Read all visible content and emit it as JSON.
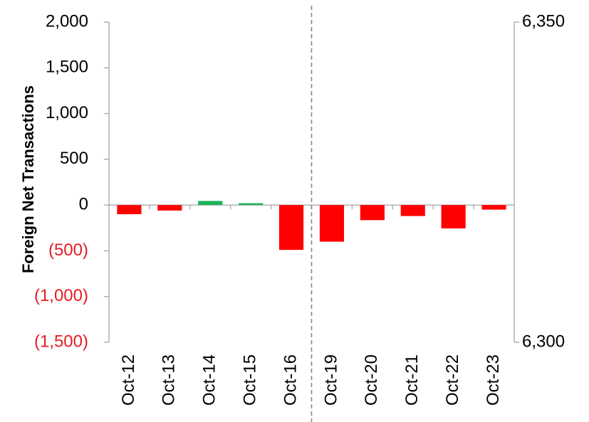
{
  "chart_data": {
    "type": "bar",
    "title": "",
    "xlabel": "",
    "ylabel": "Foreign Net Transactions",
    "categories": [
      "Oct-12",
      "Oct-13",
      "Oct-14",
      "Oct-15",
      "Oct-16",
      "Oct-19",
      "Oct-20",
      "Oct-21",
      "Oct-22",
      "Oct-23"
    ],
    "values": [
      -100,
      -60,
      45,
      20,
      -490,
      -400,
      -165,
      -120,
      -255,
      -50
    ],
    "ylim": [
      -1500,
      2000
    ],
    "yticks": [
      2000,
      1500,
      1000,
      500,
      0,
      -500,
      -1000,
      -1500
    ],
    "ytick_labels": [
      "2,000",
      "1,500",
      "1,000",
      "500",
      "0",
      "(500)",
      "(1,000)",
      "(1,500)"
    ],
    "y2lim": [
      6300,
      6350
    ],
    "y2ticks": [
      6350,
      6300
    ],
    "y2tick_labels": [
      "6,350",
      "6,300"
    ],
    "divider_after_index": 4,
    "grid": false,
    "colors": {
      "positive": "#1EB25A",
      "negative": "#FF0000",
      "negative_label": "#E51C23",
      "axis": "#A6A6A6",
      "divider": "#808080",
      "text": "#000000"
    }
  }
}
